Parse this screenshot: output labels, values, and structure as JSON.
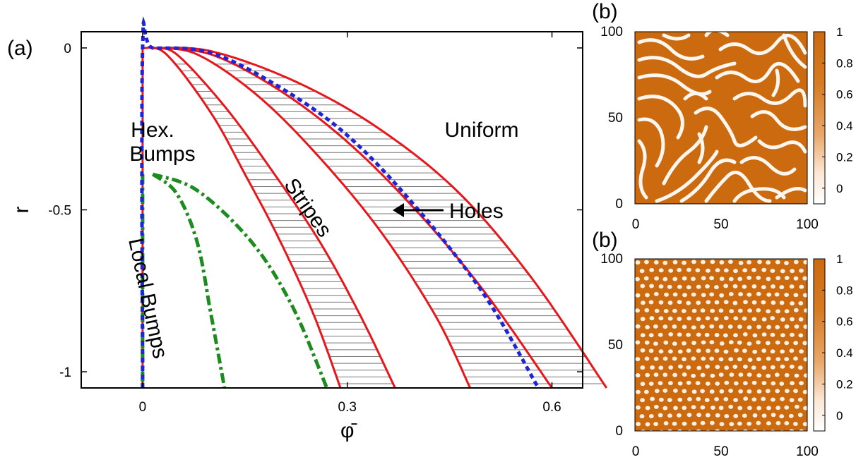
{
  "chart_data": [
    {
      "type": "line",
      "panel_label": "(a)",
      "xlabel": "φ̄",
      "ylabel": "r",
      "xlim": [
        -0.09,
        0.645
      ],
      "ylim": [
        -1.05,
        0.05
      ],
      "x_ticks": [
        {
          "value": 0,
          "label": "0"
        },
        {
          "value": 0.3,
          "label": "0.3"
        },
        {
          "value": 0.6,
          "label": "0.6"
        }
      ],
      "y_ticks": [
        {
          "value": 0,
          "label": "0"
        },
        {
          "value": -0.5,
          "label": "-0.5"
        },
        {
          "value": -1,
          "label": "-1"
        }
      ],
      "region_labels": {
        "hex": [
          "Hex.",
          "Bumps"
        ],
        "uniform": "Uniform",
        "stripes": "Stripes",
        "local": "Local Bumps",
        "holes": "Holes"
      },
      "series": [
        {
          "style": "red-solid",
          "x": [
            0,
            0.0
          ],
          "y": [
            0,
            -1.05
          ]
        },
        {
          "style": "red-solid",
          "x": [
            0,
            0.035,
            0.1,
            0.15,
            0.2,
            0.25,
            0.29
          ],
          "y": [
            0,
            -0.02,
            -0.2,
            -0.39,
            -0.59,
            -0.82,
            -1.05
          ]
        },
        {
          "style": "red-solid",
          "x": [
            0.015,
            0.05,
            0.12,
            0.19,
            0.26,
            0.32,
            0.37
          ],
          "y": [
            0,
            -0.02,
            -0.18,
            -0.38,
            -0.6,
            -0.83,
            -1.05
          ]
        },
        {
          "style": "red-solid",
          "x": [
            0.015,
            0.08,
            0.17,
            0.26,
            0.35,
            0.43,
            0.48
          ],
          "y": [
            0,
            -0.02,
            -0.15,
            -0.34,
            -0.57,
            -0.83,
            -1.05
          ]
        },
        {
          "style": "red-solid",
          "x": [
            0.015,
            0.1,
            0.2,
            0.3,
            0.4,
            0.5,
            0.6
          ],
          "y": [
            0,
            -0.02,
            -0.13,
            -0.29,
            -0.5,
            -0.75,
            -1.05
          ]
        },
        {
          "style": "red-solid",
          "x": [
            0.015,
            0.1,
            0.22,
            0.34,
            0.46,
            0.57,
            0.68
          ],
          "y": [
            0,
            -0.01,
            -0.1,
            -0.24,
            -0.44,
            -0.71,
            -1.05
          ]
        },
        {
          "style": "blue-dashed",
          "x": [
            0,
            0,
            0.015,
            0.1,
            0.2,
            0.3,
            0.4,
            0.5,
            0.58
          ],
          "y": [
            -1.05,
            0,
            0,
            -0.015,
            -0.12,
            -0.27,
            -0.49,
            -0.76,
            -1.05
          ]
        },
        {
          "style": "green-dashdot",
          "x": [
            0,
            0
          ],
          "y": [
            -0.39,
            -1.05
          ]
        },
        {
          "style": "green-dashdot",
          "x": [
            0.015,
            0.05,
            0.08,
            0.1,
            0.12
          ],
          "y": [
            -0.39,
            -0.45,
            -0.6,
            -0.82,
            -1.05
          ]
        },
        {
          "style": "green-dashdot",
          "x": [
            0.015,
            0.08,
            0.16,
            0.22,
            0.27
          ],
          "y": [
            -0.39,
            -0.44,
            -0.6,
            -0.8,
            -1.05
          ]
        }
      ],
      "hatched_bands": [
        {
          "between": [
            1,
            2
          ]
        },
        {
          "between": [
            3,
            4
          ]
        },
        {
          "between": [
            4,
            5
          ]
        }
      ]
    },
    {
      "type": "heatmap",
      "panel_label": "(b)",
      "pattern": "stripes",
      "x_ticks": [
        "0",
        "50",
        "100"
      ],
      "y_ticks": [
        "0",
        "50",
        "100"
      ],
      "colorbar_ticks": [
        "1",
        "0.8",
        "0.6",
        "0.4",
        "0.2",
        "0"
      ],
      "colorbar_range": [
        -0.1,
        1.0
      ],
      "colors": {
        "high": "#cc6a10",
        "low": "#ffffff"
      }
    },
    {
      "type": "heatmap",
      "panel_label": "(b)",
      "pattern": "spots",
      "x_ticks": [
        "0",
        "50",
        "100"
      ],
      "y_ticks": [
        "0",
        "50",
        "100"
      ],
      "colorbar_ticks": [
        "1",
        "0.8",
        "0.6",
        "0.4",
        "0.2",
        "0"
      ],
      "colorbar_range": [
        -0.1,
        1.0
      ],
      "colors": {
        "high": "#cc6a10",
        "low": "#ffffff"
      }
    }
  ]
}
